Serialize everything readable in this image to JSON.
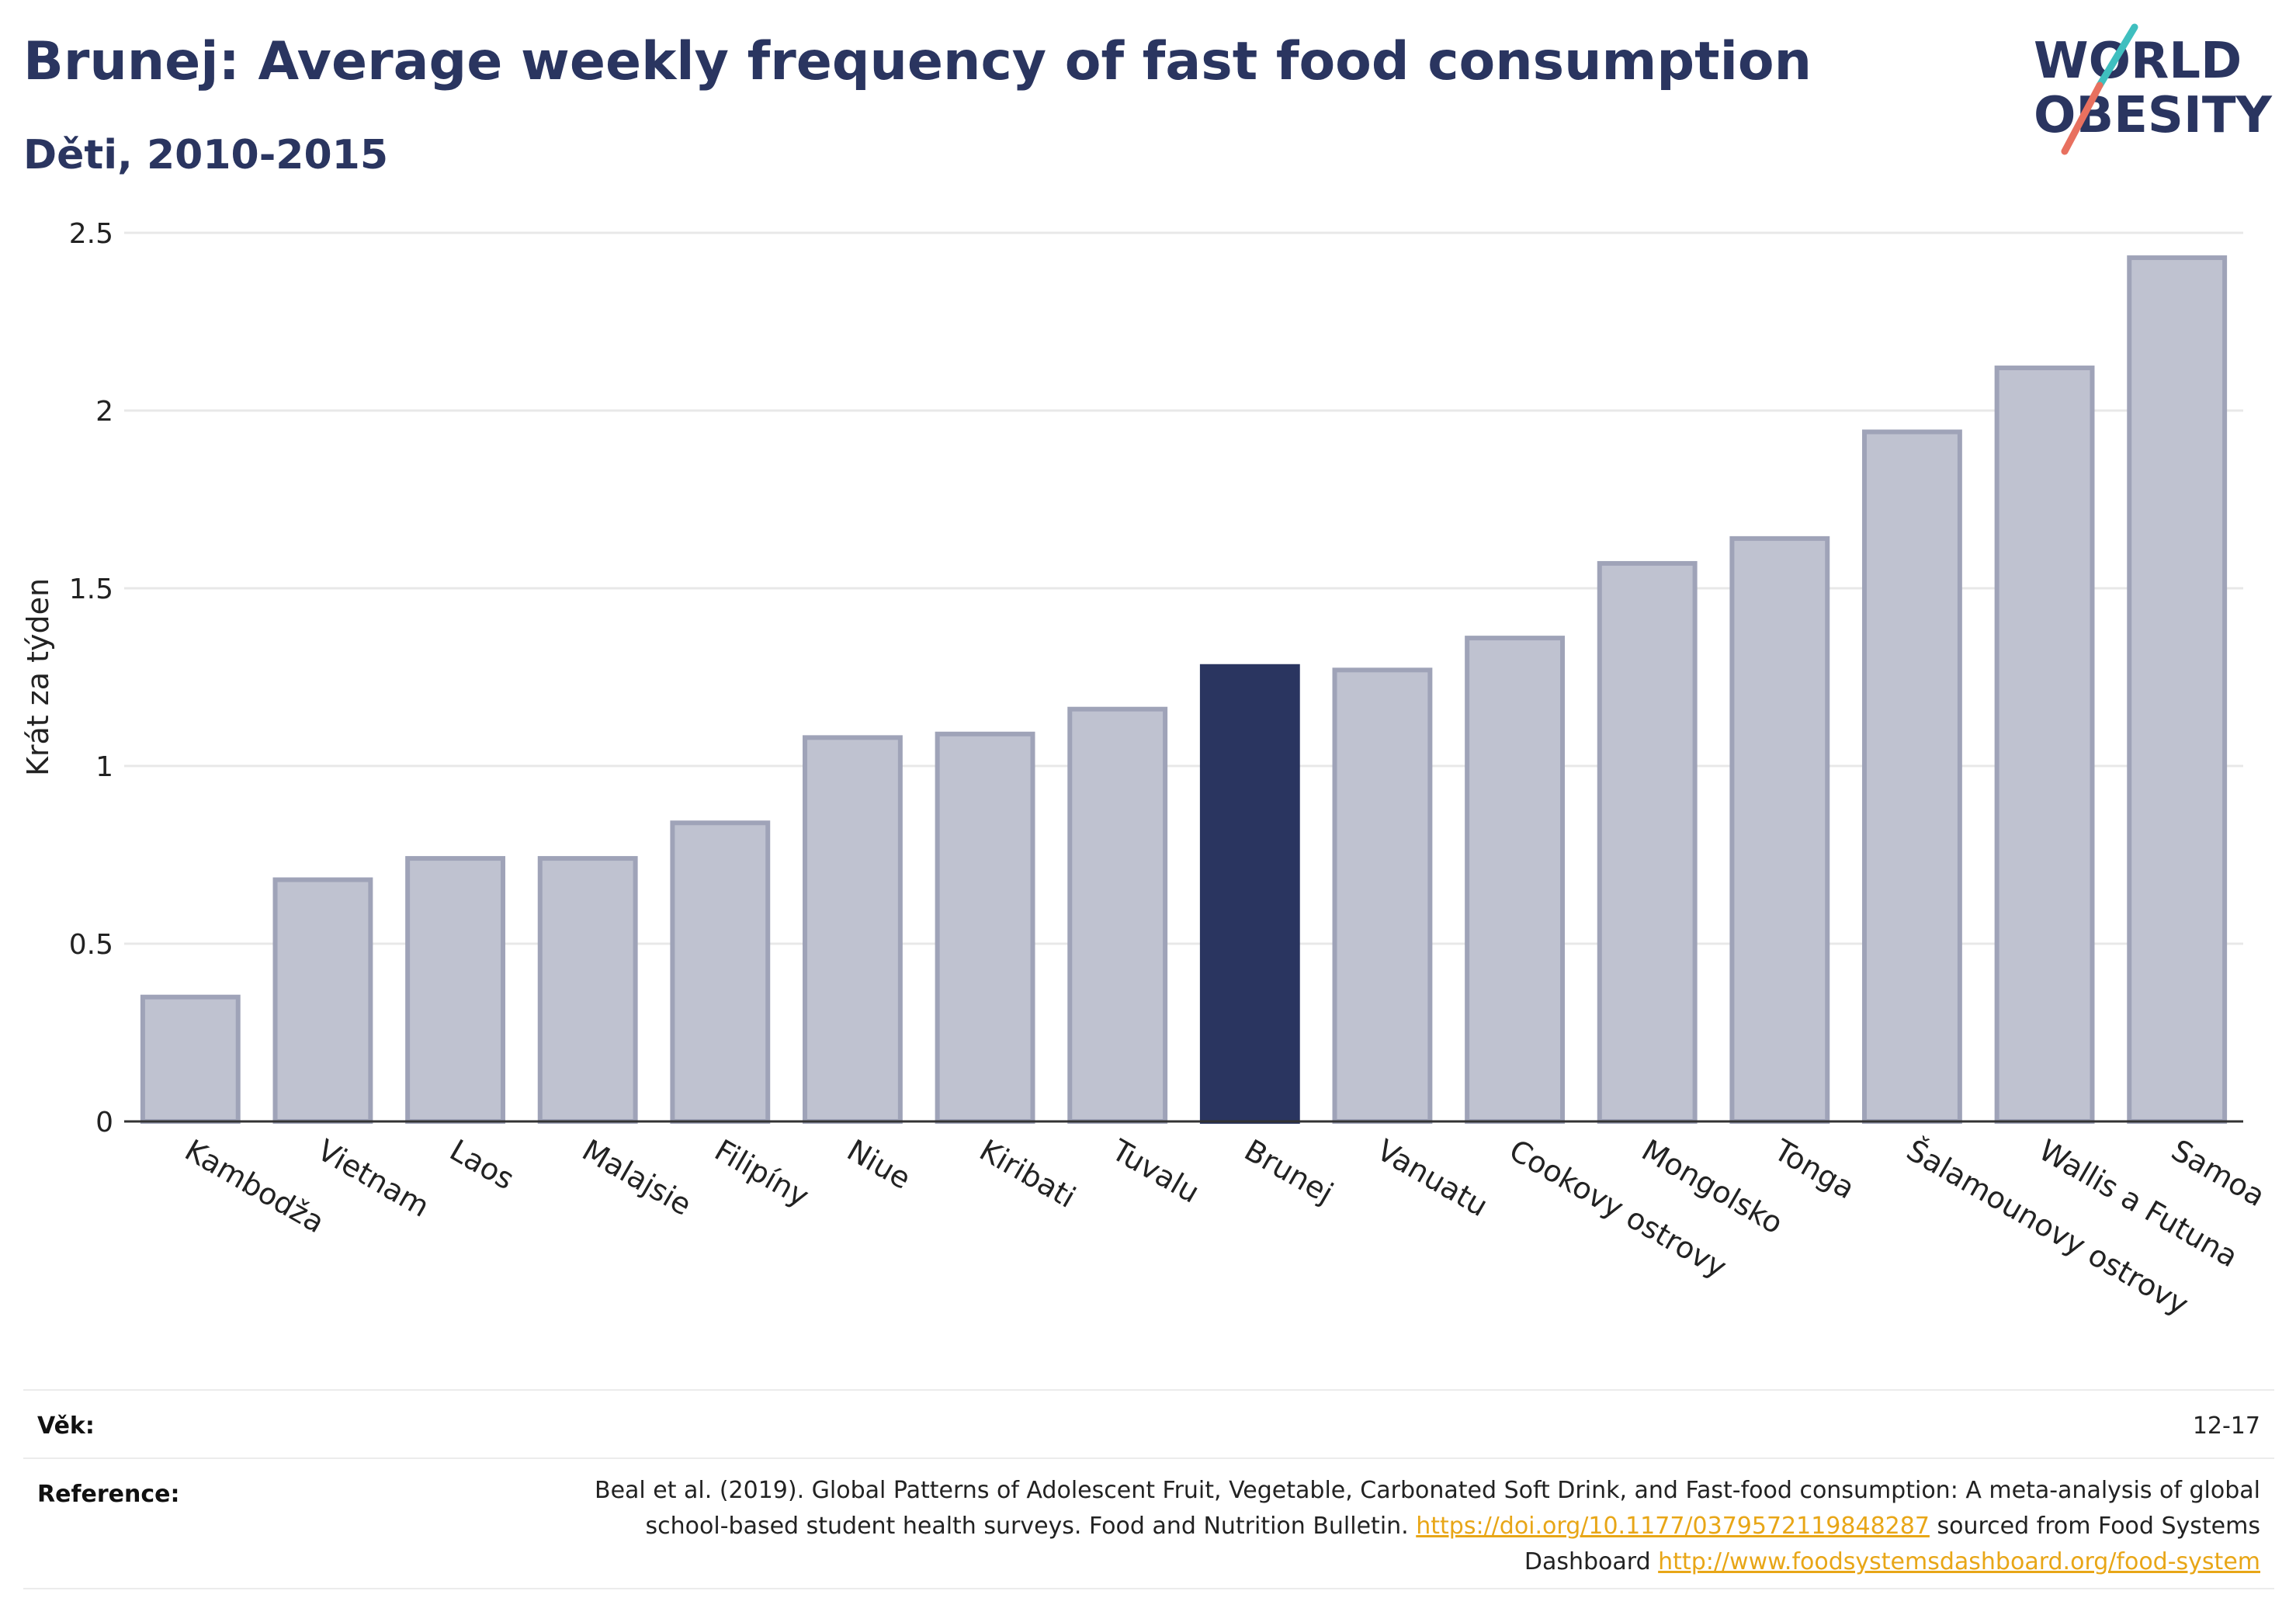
{
  "header": {
    "title": "Brunej: Average weekly frequency of fast food consumption",
    "subtitle": "Děti, 2010-2015"
  },
  "logo": {
    "line1": "WORLD",
    "line2": "OBESITY"
  },
  "colors": {
    "highlight": "#2a3560",
    "bar": "#bfc2d0",
    "bar_outline": "#9fa3b8",
    "grid": "#e8e8e8",
    "link": "#e8a617"
  },
  "chart_data": {
    "type": "bar",
    "categories": [
      "Kambodža",
      "Vietnam",
      "Laos",
      "Malajsie",
      "Filipíny",
      "Niue",
      "Kiribati",
      "Tuvalu",
      "Brunej",
      "Vanuatu",
      "Cookovy ostrovy",
      "Mongolsko",
      "Tonga",
      "Šalamounovy ostrovy",
      "Wallis a Futuna",
      "Samoa"
    ],
    "values": [
      0.35,
      0.68,
      0.74,
      0.74,
      0.84,
      1.08,
      1.09,
      1.16,
      1.28,
      1.27,
      1.36,
      1.57,
      1.64,
      1.94,
      2.12,
      2.43
    ],
    "highlight": "Brunej",
    "ylabel": "Krát za týden",
    "ylim": [
      0,
      2.5
    ],
    "yticks": [
      0,
      0.5,
      1,
      1.5,
      2,
      2.5
    ],
    "ytick_labels": [
      "0",
      "0.5",
      "1",
      "1.5",
      "2",
      "2.5"
    ],
    "grid": true
  },
  "footer": {
    "age_label": "Věk:",
    "age_value": "12-17",
    "ref_label": "Reference:",
    "ref_text_1": "Beal et al. (2019). Global Patterns of Adolescent Fruit, Vegetable, Carbonated Soft Drink, and Fast-food consumption: A meta-analysis of global school-based student health surveys. Food and Nutrition Bulletin. ",
    "ref_link_1": "https://doi.org/10.1177/0379572119848287",
    "ref_text_2": " sourced from Food Systems Dashboard ",
    "ref_link_2": "http://www.foodsystemsdashboard.org/food-system"
  }
}
